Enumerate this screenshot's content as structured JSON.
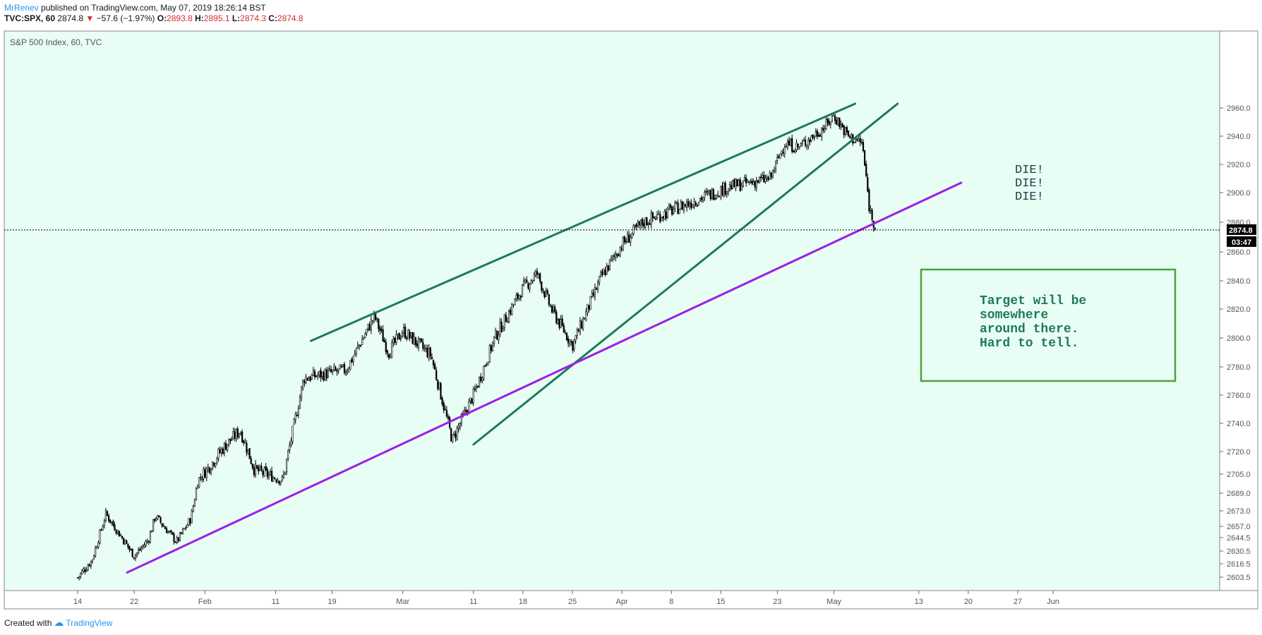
{
  "header": {
    "author": "MrRenev",
    "published": "published on TradingView.com, May 07, 2019 18:26:14 BST",
    "symbol": "TVC:SPX, 60",
    "last": "2874.8",
    "change": "−57.6 (−1.97%)",
    "o_label": "O:",
    "o_value": "2893.8",
    "h_label": "H:",
    "h_value": "2895.1",
    "l_label": "L:",
    "l_value": "2874.3",
    "c_label": "C:",
    "c_value": "2874.8"
  },
  "footer": {
    "created": "Created with",
    "brand": "TradingView"
  },
  "chart_data": {
    "type": "candlestick",
    "title": "S&P 500 Index, 60, TVC",
    "ylim": [
      2595,
      2963
    ],
    "y_ticks": [
      "2960.0",
      "2940.0",
      "2920.0",
      "2900.0",
      "2880.0",
      "2860.0",
      "2840.0",
      "2820.0",
      "2800.0",
      "2780.0",
      "2760.0",
      "2740.0",
      "2720.0",
      "2705.0",
      "2689.0",
      "2673.0",
      "2657.0",
      "2644.5",
      "2630.5",
      "2616.5",
      "2603.5"
    ],
    "x_ticks": [
      "14",
      "22",
      "Feb",
      "11",
      "19",
      "Mar",
      "11",
      "18",
      "25",
      "Apr",
      "8",
      "15",
      "23",
      "May",
      "13",
      "20",
      "27",
      "Jun"
    ],
    "last_price_label": "2874.8",
    "countdown_label": "03:47",
    "colors": {
      "background": "#e8fdf3",
      "candle": "#000000",
      "channel": "#1e7a5a",
      "support": "#9c1ee8",
      "box": "#4aa33a",
      "note": "#1e7a5a"
    },
    "price_path": [
      [
        "Jan 14",
        2603
      ],
      [
        "Jan 16",
        2620
      ],
      [
        "Jan 18",
        2670
      ],
      [
        "Jan 22",
        2625
      ],
      [
        "Jan 24",
        2642
      ],
      [
        "Jan 25",
        2668
      ],
      [
        "Jan 28",
        2640
      ],
      [
        "Jan 30",
        2665
      ],
      [
        "Jan 31",
        2700
      ],
      [
        "Feb 4",
        2725
      ],
      [
        "Feb 6",
        2735
      ],
      [
        "Feb 8",
        2708
      ],
      [
        "Feb 12",
        2700
      ],
      [
        "Feb 15",
        2772
      ],
      [
        "Feb 21",
        2778
      ],
      [
        "Feb 25",
        2815
      ],
      [
        "Feb 27",
        2790
      ],
      [
        "Mar 1",
        2805
      ],
      [
        "Mar 5",
        2788
      ],
      [
        "Mar 8",
        2728
      ],
      [
        "Mar 11",
        2760
      ],
      [
        "Mar 14",
        2800
      ],
      [
        "Mar 18",
        2835
      ],
      [
        "Mar 20",
        2845
      ],
      [
        "Mar 22",
        2820
      ],
      [
        "Mar 25",
        2795
      ],
      [
        "Mar 27",
        2818
      ],
      [
        "Mar 29",
        2842
      ],
      [
        "Apr 1",
        2865
      ],
      [
        "Apr 4",
        2880
      ],
      [
        "Apr 8",
        2888
      ],
      [
        "Apr 12",
        2896
      ],
      [
        "Apr 16",
        2904
      ],
      [
        "Apr 22",
        2910
      ],
      [
        "Apr 24",
        2935
      ],
      [
        "Apr 26",
        2932
      ],
      [
        "Apr 30",
        2948
      ],
      [
        "May 1",
        2955
      ],
      [
        "May 3",
        2940
      ],
      [
        "May 5",
        2935
      ],
      [
        "May 6",
        2890
      ],
      [
        "May 7",
        2874.8
      ]
    ],
    "lines": [
      {
        "name": "channel-upper",
        "color": "#1e7a5a",
        "from": [
          "Feb 16",
          2798
        ],
        "to": [
          "May 4",
          2963
        ]
      },
      {
        "name": "channel-lower",
        "color": "#1e7a5a",
        "from": [
          "Mar 11",
          2725
        ],
        "to": [
          "May 10",
          2963
        ]
      },
      {
        "name": "support",
        "color": "#9c1ee8",
        "from": [
          "Jan 21",
          2608
        ],
        "to": [
          "May 19",
          2907
        ]
      }
    ],
    "annotations": {
      "die": [
        "DIE!",
        "DIE!",
        "DIE!"
      ],
      "target": [
        "Target will be",
        "somewhere",
        "around there.",
        "Hard to tell."
      ]
    }
  }
}
